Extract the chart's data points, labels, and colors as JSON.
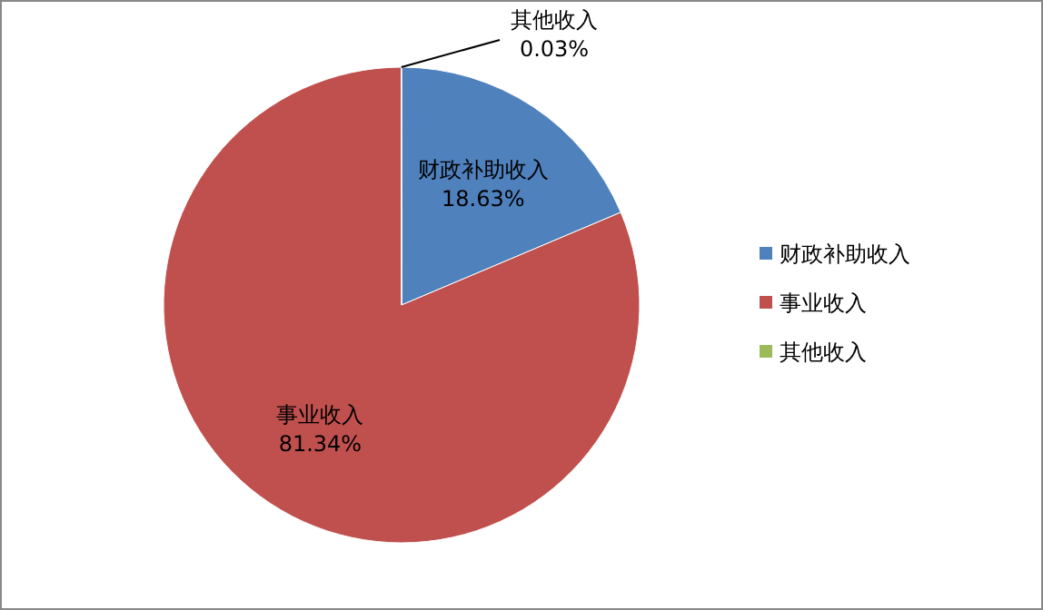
{
  "chart_data": {
    "type": "pie",
    "categories": [
      "财政补助收入",
      "事业收入",
      "其他收入"
    ],
    "values": [
      18.63,
      81.34,
      0.03
    ],
    "colors": [
      "#4f81bd",
      "#c0504d",
      "#9bbb59"
    ],
    "value_labels": [
      "18.63%",
      "81.34%",
      "0.03%"
    ],
    "legend": "right"
  }
}
